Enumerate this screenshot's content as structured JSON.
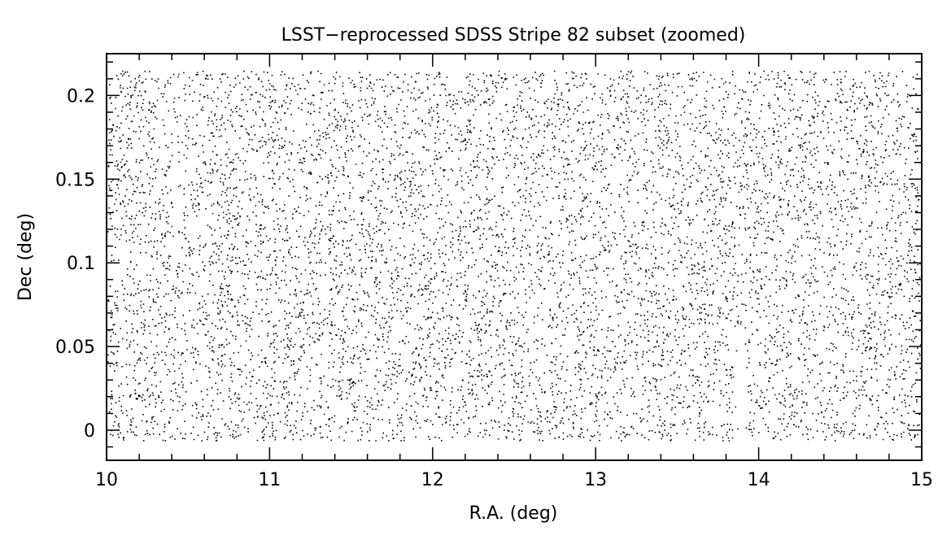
{
  "chart_data": {
    "type": "scatter",
    "title": "LSST−reprocessed SDSS Stripe 82 subset (zoomed)",
    "xlabel": "R.A. (deg)",
    "ylabel": "Dec (deg)",
    "xlim": [
      10,
      15
    ],
    "ylim": [
      -0.018,
      0.225
    ],
    "x_ticks": [
      {
        "value": 10,
        "label": "10"
      },
      {
        "value": 11,
        "label": "11"
      },
      {
        "value": 12,
        "label": "12"
      },
      {
        "value": 13,
        "label": "13"
      },
      {
        "value": 14,
        "label": "14"
      },
      {
        "value": 15,
        "label": "15"
      }
    ],
    "y_ticks": [
      {
        "value": 0,
        "label": "0"
      },
      {
        "value": 0.05,
        "label": "0.05"
      },
      {
        "value": 0.1,
        "label": "0.1"
      },
      {
        "value": 0.15,
        "label": "0.15"
      },
      {
        "value": 0.2,
        "label": "0.2"
      }
    ],
    "x_minor_step": 0.2,
    "y_minor_step": 0.01,
    "point_color": "#000000",
    "grid": false,
    "legend": "none",
    "point_density": "very dense, roughly uniform field of point sources",
    "points_drawn": 46000,
    "points_region": {
      "ra": [
        10,
        15
      ],
      "dec": [
        -0.006,
        0.215
      ]
    },
    "gaps": [
      {
        "ra": 10.42,
        "dec": [
          0.1,
          0.185
        ],
        "halfwidth_deg": 0.018
      },
      {
        "ra": 10.5,
        "dec": [
          -0.006,
          0.05
        ],
        "halfwidth_deg": 0.015
      },
      {
        "ra": 13.89,
        "dec": [
          -0.006,
          0.062
        ],
        "halfwidth_deg": 0.035
      },
      {
        "ra": 12.45,
        "dec": [
          0.0,
          0.05
        ],
        "halfwidth_deg": 0.01
      },
      {
        "ra": 13.27,
        "dec": [
          0.1,
          0.18
        ],
        "halfwidth_deg": 0.01
      },
      {
        "ra": 14.55,
        "dec": [
          0.08,
          0.12
        ],
        "halfwidth_deg": 0.01
      }
    ]
  }
}
